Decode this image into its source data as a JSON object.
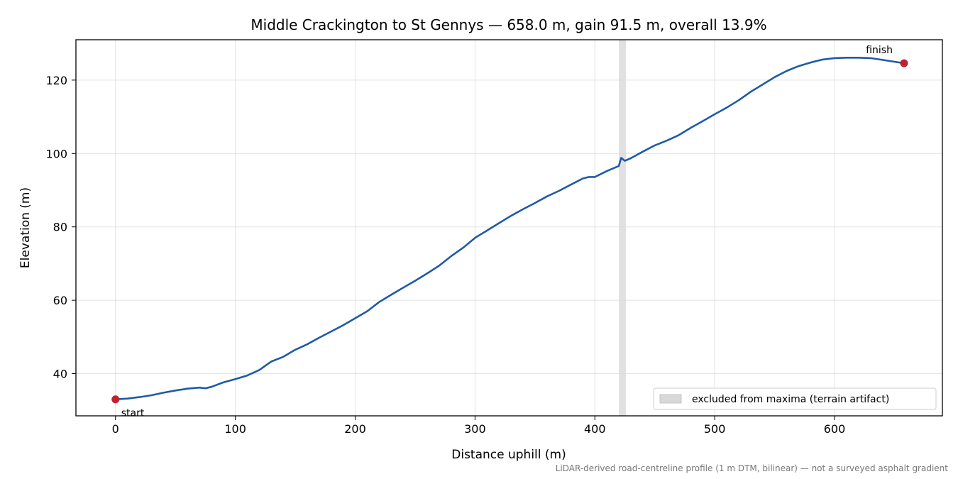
{
  "chart_data": {
    "type": "line",
    "title": "Middle Crackington to St Gennys — 658.0 m, gain 91.5 m, overall 13.9%",
    "xlabel": "Distance uphill (m)",
    "ylabel": "Elevation (m)",
    "footnote": "LiDAR-derived road-centreline profile (1 m DTM, bilinear) — not a surveyed asphalt gradient",
    "xlim": [
      -33,
      690
    ],
    "ylim": [
      28.5,
      131
    ],
    "xticks": [
      0,
      100,
      200,
      300,
      400,
      500,
      600
    ],
    "yticks": [
      40,
      60,
      80,
      100,
      120
    ],
    "grid": true,
    "colors": {
      "line": "#1f5aa8",
      "marker": "#c0202f",
      "excluded_band": "#d9d9d9"
    },
    "series": [
      {
        "x": [
          0,
          10,
          20,
          30,
          40,
          50,
          60,
          70,
          75,
          80,
          90,
          100,
          110,
          120,
          130,
          140,
          150,
          160,
          170,
          180,
          190,
          200,
          210,
          220,
          230,
          240,
          250,
          260,
          270,
          280,
          290,
          300,
          310,
          320,
          330,
          340,
          350,
          360,
          370,
          380,
          390,
          395,
          400,
          410,
          420,
          422,
          425,
          430,
          440,
          450,
          460,
          470,
          480,
          490,
          500,
          510,
          520,
          530,
          540,
          550,
          560,
          570,
          580,
          590,
          600,
          610,
          620,
          630,
          640,
          650,
          658
        ],
        "y": [
          33.0,
          33.2,
          33.6,
          34.1,
          34.8,
          35.4,
          35.9,
          36.2,
          36.0,
          36.4,
          37.6,
          38.5,
          39.5,
          41.0,
          43.3,
          44.6,
          46.5,
          48.0,
          49.8,
          51.5,
          53.2,
          55.1,
          57.0,
          59.5,
          61.5,
          63.4,
          65.3,
          67.3,
          69.4,
          72.0,
          74.3,
          77.0,
          79.0,
          81.0,
          83.0,
          84.8,
          86.5,
          88.3,
          89.8,
          91.5,
          93.2,
          93.6,
          93.6,
          95.2,
          96.6,
          98.8,
          98.0,
          98.7,
          100.5,
          102.2,
          103.5,
          105.0,
          107.0,
          108.8,
          110.7,
          112.5,
          114.5,
          116.8,
          118.8,
          120.8,
          122.5,
          123.8,
          124.8,
          125.6,
          126.0,
          126.1,
          126.1,
          126.0,
          125.5,
          125.0,
          124.6
        ]
      }
    ],
    "excluded_band": {
      "x0": 420,
      "x1": 426,
      "label": "excluded from maxima (terrain artifact)"
    },
    "points": [
      {
        "label": "start",
        "x": 0,
        "y": 33.0
      },
      {
        "label": "finish",
        "x": 658,
        "y": 124.6
      }
    ],
    "legend_position": "lower-right"
  }
}
